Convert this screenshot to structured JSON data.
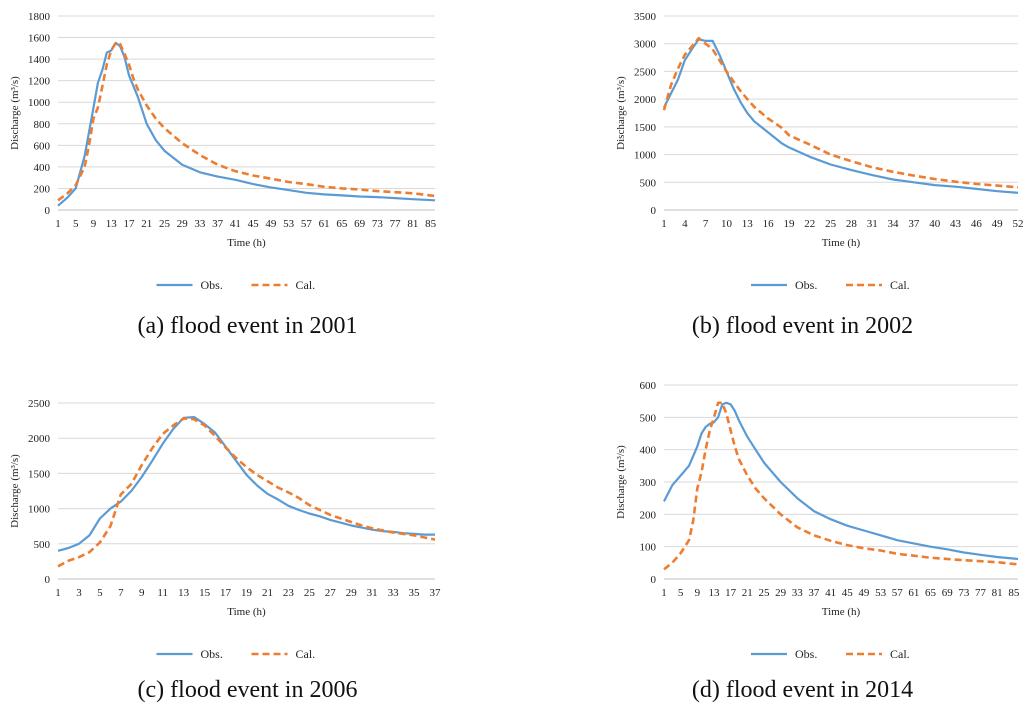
{
  "panels": [
    {
      "caption": "(a) flood event in 2001"
    },
    {
      "caption": "(b) flood event in 2002"
    },
    {
      "caption": "(c) flood event in 2006"
    },
    {
      "caption": "(d) flood event in 2014"
    }
  ],
  "colors": {
    "obs": "#5b9bd5",
    "cal": "#ed7d31"
  },
  "chart_data": [
    {
      "type": "line",
      "ylabel": "Discharge (m³/s)",
      "xlabel": "Time (h)",
      "ylim": [
        0,
        1800
      ],
      "yticks": [
        0,
        200,
        400,
        600,
        800,
        1000,
        1200,
        1400,
        1600,
        1800
      ],
      "x_range": [
        1,
        86
      ],
      "xticks": [
        1,
        5,
        9,
        13,
        17,
        21,
        25,
        29,
        33,
        37,
        41,
        45,
        49,
        53,
        57,
        61,
        65,
        69,
        73,
        77,
        81,
        85
      ],
      "grid": true,
      "legend": "bottom",
      "series": [
        {
          "name": "Obs.",
          "x": [
            1,
            3,
            5,
            7,
            9,
            10,
            11,
            12,
            13,
            14,
            15,
            16,
            17,
            18,
            19,
            21,
            23,
            25,
            29,
            33,
            37,
            41,
            45,
            49,
            53,
            57,
            61,
            65,
            69,
            73,
            77,
            81,
            86
          ],
          "values": [
            40,
            110,
            200,
            500,
            950,
            1180,
            1300,
            1460,
            1480,
            1550,
            1520,
            1420,
            1250,
            1150,
            1050,
            800,
            650,
            550,
            420,
            350,
            310,
            280,
            240,
            210,
            185,
            160,
            145,
            135,
            125,
            120,
            110,
            100,
            90
          ]
        },
        {
          "name": "Cal.",
          "x": [
            1,
            3,
            5,
            7,
            8,
            9,
            10,
            11,
            12,
            13,
            14,
            15,
            16,
            17,
            18,
            19,
            21,
            23,
            25,
            29,
            33,
            37,
            41,
            45,
            49,
            53,
            57,
            61,
            65,
            69,
            73,
            77,
            81,
            86
          ],
          "values": [
            90,
            150,
            230,
            400,
            600,
            850,
            950,
            1150,
            1350,
            1480,
            1550,
            1540,
            1450,
            1350,
            1220,
            1120,
            970,
            850,
            760,
            620,
            510,
            420,
            360,
            320,
            290,
            260,
            240,
            215,
            200,
            190,
            175,
            165,
            155,
            130
          ]
        }
      ]
    },
    {
      "type": "line",
      "ylabel": "Discharge (m³/s)",
      "xlabel": "Time (h)",
      "ylim": [
        0,
        3500
      ],
      "yticks": [
        0,
        500,
        1000,
        1500,
        2000,
        2500,
        3000,
        3500
      ],
      "x_range": [
        1,
        52
      ],
      "xticks": [
        1,
        4,
        7,
        10,
        13,
        16,
        19,
        22,
        25,
        28,
        31,
        34,
        37,
        40,
        43,
        46,
        49,
        52
      ],
      "grid": true,
      "legend": "bottom",
      "series": [
        {
          "name": "Obs.",
          "x": [
            1,
            2,
            3,
            4,
            5,
            6,
            7,
            8,
            9,
            10,
            11,
            12,
            13,
            14,
            16,
            18,
            19,
            22,
            25,
            28,
            31,
            34,
            37,
            40,
            43,
            46,
            49,
            52
          ],
          "values": [
            1850,
            2100,
            2350,
            2700,
            2900,
            3080,
            3050,
            3050,
            2800,
            2500,
            2200,
            1950,
            1750,
            1600,
            1400,
            1200,
            1130,
            960,
            820,
            720,
            630,
            550,
            500,
            450,
            420,
            380,
            340,
            310
          ]
        },
        {
          "name": "Cal.",
          "x": [
            1,
            2,
            3,
            4,
            5,
            6,
            7,
            8,
            9,
            10,
            11,
            12,
            13,
            14,
            16,
            18,
            19,
            22,
            25,
            28,
            31,
            34,
            37,
            40,
            43,
            46,
            49,
            52
          ],
          "values": [
            1800,
            2250,
            2550,
            2800,
            2950,
            3100,
            3000,
            2900,
            2700,
            2500,
            2320,
            2150,
            2000,
            1860,
            1650,
            1480,
            1350,
            1180,
            1000,
            880,
            770,
            690,
            620,
            560,
            510,
            470,
            440,
            410
          ]
        }
      ]
    },
    {
      "type": "line",
      "ylabel": "Discharge (m³/s)",
      "xlabel": "Time (h)",
      "ylim": [
        0,
        2500
      ],
      "yticks": [
        0,
        500,
        1000,
        1500,
        2000,
        2500
      ],
      "x_range": [
        1,
        37
      ],
      "xticks": [
        1,
        3,
        5,
        7,
        9,
        11,
        13,
        15,
        17,
        19,
        21,
        23,
        25,
        27,
        29,
        31,
        33,
        35,
        37
      ],
      "grid": true,
      "legend": "bottom",
      "series": [
        {
          "name": "Obs.",
          "x": [
            1,
            2,
            3,
            4,
            5,
            6,
            7,
            8,
            9,
            10,
            11,
            12,
            13,
            14,
            15,
            16,
            17,
            18,
            19,
            20,
            21,
            22,
            23,
            24,
            25,
            26,
            27,
            28,
            29,
            30,
            31,
            32,
            33,
            34,
            35,
            36,
            37
          ],
          "values": [
            400,
            440,
            500,
            620,
            860,
            1000,
            1100,
            1250,
            1450,
            1680,
            1920,
            2130,
            2290,
            2300,
            2200,
            2080,
            1880,
            1680,
            1480,
            1330,
            1210,
            1130,
            1040,
            980,
            930,
            890,
            840,
            800,
            760,
            730,
            700,
            680,
            670,
            650,
            640,
            630,
            630
          ]
        },
        {
          "name": "Cal.",
          "x": [
            1,
            2,
            3,
            4,
            5,
            6,
            7,
            8,
            9,
            10,
            11,
            12,
            13,
            14,
            15,
            16,
            17,
            18,
            19,
            20,
            21,
            22,
            23,
            24,
            25,
            26,
            27,
            28,
            29,
            30,
            31,
            32,
            33,
            34,
            35,
            36,
            37
          ],
          "values": [
            180,
            260,
            310,
            380,
            520,
            750,
            1200,
            1350,
            1620,
            1860,
            2060,
            2180,
            2280,
            2270,
            2180,
            2030,
            1870,
            1720,
            1590,
            1480,
            1390,
            1300,
            1230,
            1150,
            1050,
            980,
            910,
            860,
            810,
            760,
            720,
            690,
            660,
            640,
            620,
            590,
            560
          ]
        }
      ]
    },
    {
      "type": "line",
      "ylabel": "Discharge (m³/s)",
      "xlabel": "Time (h)",
      "ylim": [
        0,
        600
      ],
      "yticks": [
        0,
        100,
        200,
        300,
        400,
        500,
        600
      ],
      "x_range": [
        1,
        86
      ],
      "xticks": [
        1,
        5,
        9,
        13,
        17,
        21,
        25,
        29,
        33,
        37,
        41,
        45,
        49,
        53,
        57,
        61,
        65,
        69,
        73,
        77,
        81,
        85
      ],
      "grid": true,
      "legend": "bottom",
      "series": [
        {
          "name": "Obs.",
          "x": [
            1,
            3,
            5,
            7,
            9,
            10,
            11,
            12,
            13,
            14,
            15,
            16,
            17,
            18,
            19,
            21,
            23,
            25,
            29,
            33,
            37,
            41,
            45,
            49,
            53,
            57,
            61,
            65,
            69,
            73,
            77,
            81,
            86
          ],
          "values": [
            240,
            290,
            320,
            350,
            410,
            450,
            470,
            480,
            485,
            500,
            540,
            545,
            540,
            520,
            490,
            440,
            400,
            360,
            300,
            250,
            210,
            185,
            165,
            150,
            135,
            120,
            110,
            100,
            92,
            82,
            75,
            68,
            62
          ]
        },
        {
          "name": "Cal.",
          "x": [
            1,
            3,
            5,
            7,
            8,
            9,
            10,
            11,
            12,
            13,
            14,
            15,
            16,
            17,
            18,
            19,
            21,
            23,
            25,
            29,
            33,
            37,
            41,
            45,
            49,
            53,
            57,
            61,
            65,
            69,
            73,
            77,
            81,
            86
          ],
          "values": [
            30,
            50,
            80,
            120,
            180,
            280,
            330,
            400,
            460,
            500,
            545,
            545,
            510,
            460,
            410,
            370,
            320,
            280,
            250,
            200,
            160,
            135,
            118,
            105,
            95,
            88,
            78,
            72,
            66,
            62,
            58,
            55,
            52,
            45
          ]
        }
      ]
    }
  ]
}
